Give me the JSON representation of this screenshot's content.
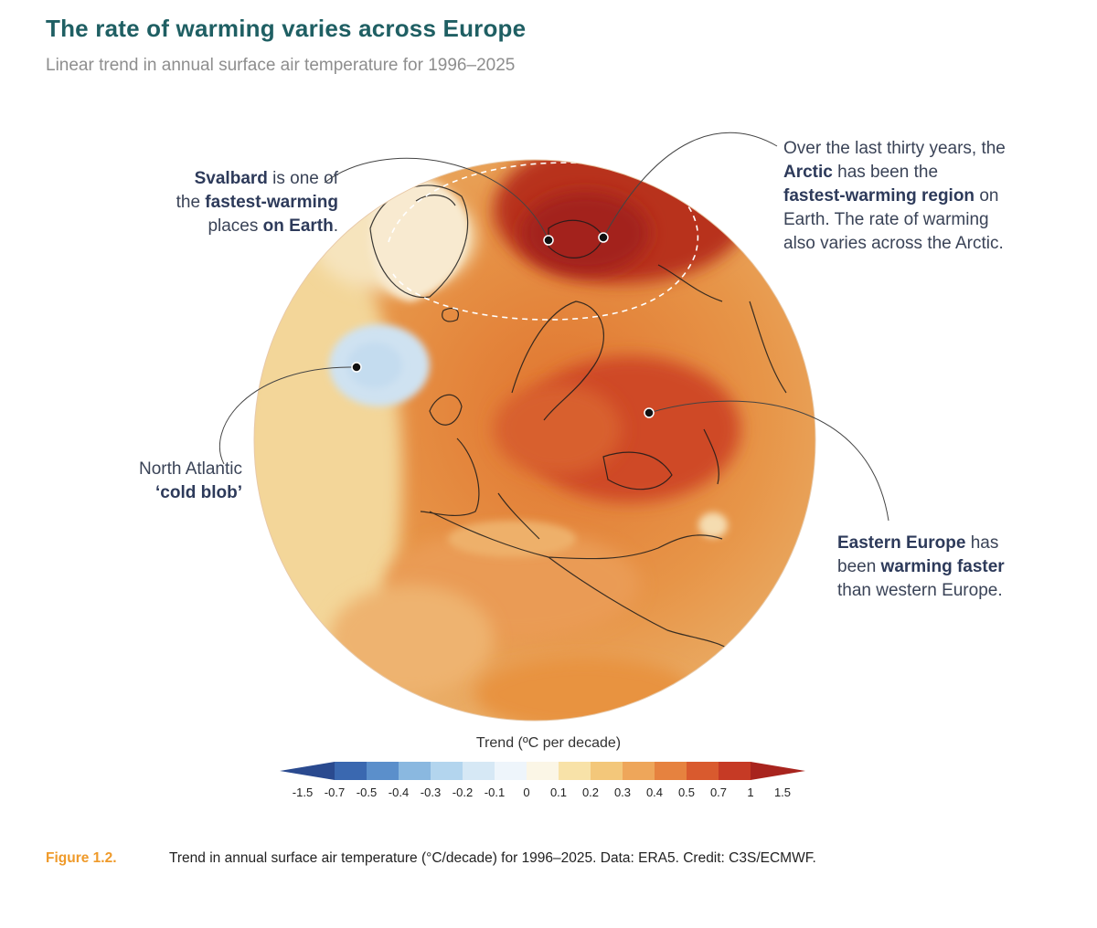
{
  "header": {
    "title": "The rate of warming varies across Europe",
    "subtitle": "Linear trend in annual surface air temperature for 1996–2025"
  },
  "annotations": {
    "svalbard": {
      "p1_bold": "Svalbard",
      "p1_rest": " is one of",
      "p2_pre": "the ",
      "p2_bold": "fastest-warming",
      "p3_pre": "places ",
      "p3_bold": "on Earth",
      "p3_end": "."
    },
    "arctic": {
      "l1": "Over the last thirty years, the",
      "l2_bold": "Arctic",
      "l2_rest": " has been the",
      "l3_bold": "fastest-warming region",
      "l3_rest": " on",
      "l4": "Earth. The rate of warming",
      "l5": "also varies across the Arctic."
    },
    "cold_blob": {
      "l1": "North Atlantic",
      "l2_bold": "‘cold blob’"
    },
    "eastern": {
      "l1_bold": "Eastern Europe",
      "l1_rest": " has",
      "l2_pre": "been ",
      "l2_bold": "warming faster",
      "l3": "than western Europe."
    }
  },
  "legend": {
    "title": "Trend (ºC per decade)",
    "ticks": [
      "-1.5",
      "-0.7",
      "-0.5",
      "-0.4",
      "-0.3",
      "-0.2",
      "-0.1",
      "0",
      "0.1",
      "0.2",
      "0.3",
      "0.4",
      "0.5",
      "0.7",
      "1",
      "1.5"
    ],
    "colors": [
      "#2a4a8f",
      "#3a68b0",
      "#5b8fcb",
      "#8ab8e0",
      "#b3d5ee",
      "#d6e8f5",
      "#eef5fb",
      "#fbf6e6",
      "#f8e2a8",
      "#f3c77a",
      "#eea65a",
      "#e6823f",
      "#d95a2e",
      "#c63a25",
      "#a8241e"
    ]
  },
  "caption": {
    "figure": "Figure 1.2.",
    "text": "Trend in annual surface air temperature (°C/decade) for 1996–2025. Data: ERA5. Credit: C3S/ECMWF."
  }
}
